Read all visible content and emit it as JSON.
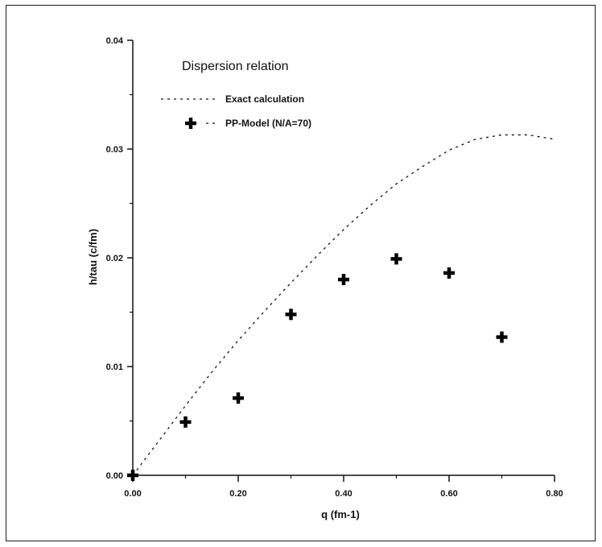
{
  "chart_data": {
    "type": "scatter",
    "title": "Dispersion relation",
    "xlabel": "q (fm-1)",
    "ylabel": "h/tau (c/fm)",
    "xlim": [
      0.0,
      0.8
    ],
    "ylim": [
      0.0,
      0.04
    ],
    "x_ticks": [
      "0.00",
      "0.20",
      "0.40",
      "0.60",
      "0.80"
    ],
    "y_ticks": [
      "0.00",
      "0.01",
      "0.02",
      "0.03",
      "0.04"
    ],
    "grid": false,
    "legend_position": "top-left",
    "series": [
      {
        "name": "Exact calculation",
        "style": "dotted-line",
        "x": [
          0.0,
          0.05,
          0.1,
          0.15,
          0.2,
          0.25,
          0.3,
          0.35,
          0.4,
          0.45,
          0.5,
          0.55,
          0.6,
          0.65,
          0.7,
          0.75,
          0.8
        ],
        "y": [
          0.0,
          0.0032,
          0.0064,
          0.0095,
          0.0124,
          0.0151,
          0.0177,
          0.0202,
          0.0226,
          0.0248,
          0.0268,
          0.0284,
          0.0299,
          0.0309,
          0.0313,
          0.0313,
          0.0309
        ]
      },
      {
        "name": "PP-Model (N/A=70)",
        "style": "plus-marker",
        "x": [
          0.0,
          0.1,
          0.2,
          0.3,
          0.4,
          0.5,
          0.6,
          0.7
        ],
        "y": [
          0.0,
          0.0049,
          0.0071,
          0.0148,
          0.018,
          0.0199,
          0.0186,
          0.0127
        ]
      }
    ]
  }
}
